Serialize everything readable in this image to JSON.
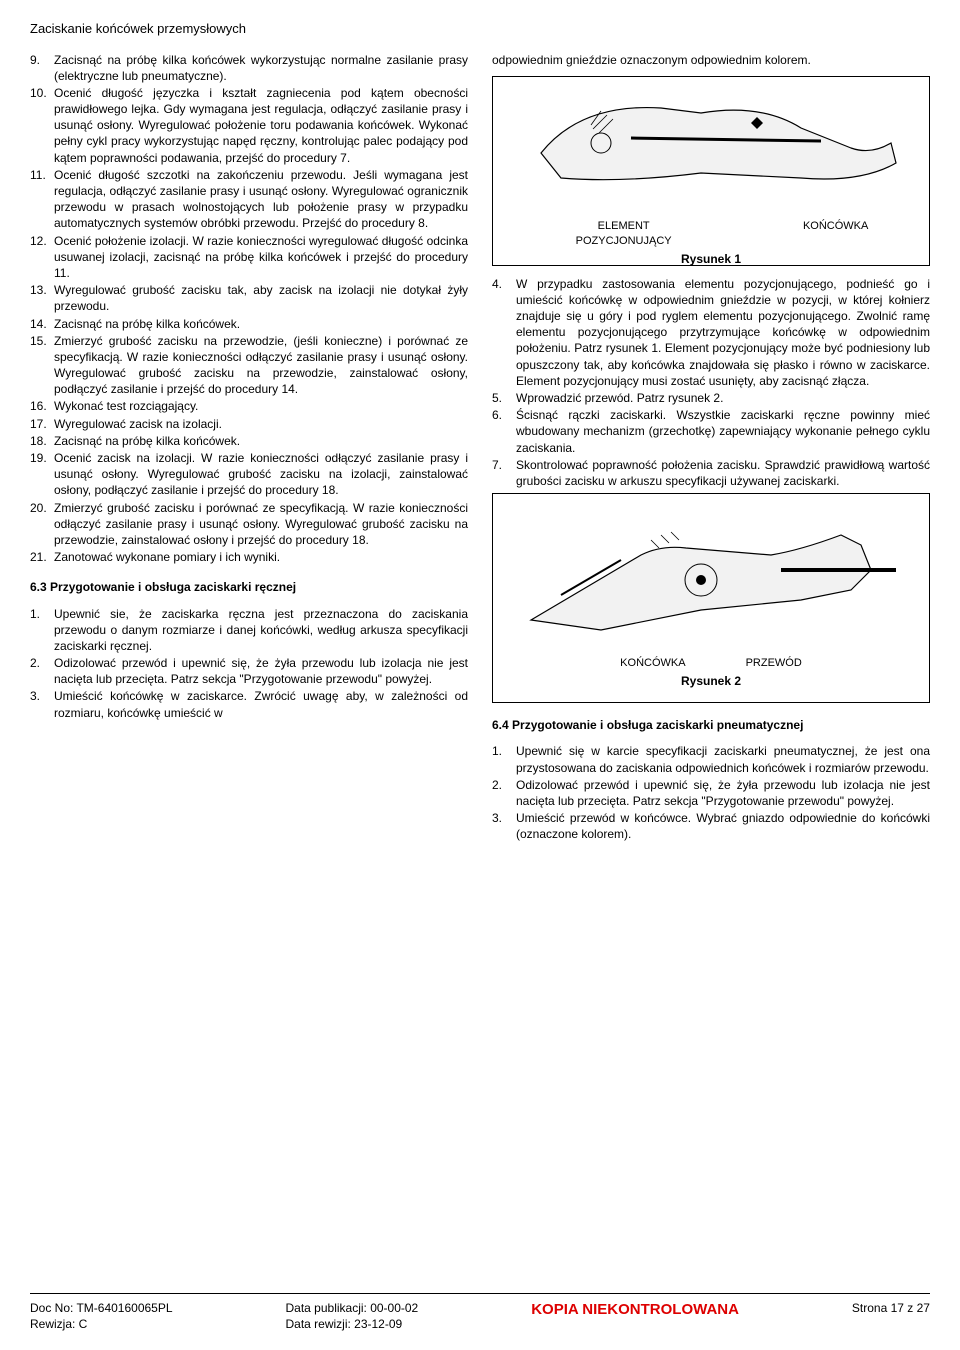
{
  "page_title": "Zaciskanie końcówek przemysłowych",
  "left": {
    "items": [
      {
        "n": "9.",
        "t": "Zacisnąć na próbę kilka końcówek wykorzystując normalne zasilanie prasy (elektryczne lub pneumatyczne)."
      },
      {
        "n": "10.",
        "t": "Ocenić długość języczka i kształt zagniecenia pod kątem obecności prawidłowego lejka.  Gdy wymagana jest regulacja, odłączyć zasilanie prasy i usunąć osłony. Wyregulować położenie toru podawania końcówek. Wykonać pełny cykl pracy wykorzystując napęd ręczny, kontrolując palec podający pod kątem poprawności podawania, przejść do procedury 7."
      },
      {
        "n": "11.",
        "t": "Ocenić długość szczotki na zakończeniu przewodu. Jeśli wymagana jest regulacja, odłączyć zasilanie prasy i usunąć osłony.  Wyregulować ogranicznik przewodu w prasach wolnostojących lub położenie prasy w przypadku automatycznych systemów obróbki przewodu. Przejść do procedury 8."
      },
      {
        "n": "12.",
        "t": "Ocenić położenie izolacji.  W razie konieczności wyregulować długość odcinka usuwanej izolacji, zacisnąć na próbę kilka końcówek i przejść do procedury 11."
      },
      {
        "n": "13.",
        "t": "Wyregulować grubość zacisku tak, aby zacisk na izolacji nie dotykał żyły przewodu."
      },
      {
        "n": "14.",
        "t": "Zacisnąć na próbę kilka końcówek."
      },
      {
        "n": "15.",
        "t": "Zmierzyć grubość zacisku na przewodzie, (jeśli konieczne) i porównać ze specyfikacją.  W razie konieczności odłączyć zasilanie prasy i usunąć osłony. Wyregulować grubość zacisku na przewodzie, zainstalować osłony, podłączyć zasilanie i przejść do procedury 14."
      },
      {
        "n": "16.",
        "t": "Wykonać test rozciągający."
      },
      {
        "n": "17.",
        "t": "Wyregulować zacisk na izolacji."
      },
      {
        "n": "18.",
        "t": "Zacisnąć na próbę kilka końcówek."
      },
      {
        "n": "19.",
        "t": "Ocenić zacisk na izolacji.  W razie konieczności odłączyć zasilanie prasy i usunąć osłony. Wyregulować grubość zacisku na izolacji, zainstalować osłony, podłączyć zasilanie i przejść do procedury 18."
      },
      {
        "n": "20.",
        "t": "Zmierzyć grubość zacisku i porównać ze specyfikacją.  W razie konieczności odłączyć zasilanie prasy i usunąć osłony.  Wyregulować grubość zacisku na przewodzie, zainstalować osłony i przejść do procedury 18."
      },
      {
        "n": "21.",
        "t": "Zanotować wykonane pomiary i ich wyniki."
      }
    ],
    "s63_heading": "6.3  Przygotowanie i obsługa zaciskarki ręcznej",
    "s63_items": [
      {
        "n": "1.",
        "t": "Upewnić sie, że zaciskarka ręczna jest przeznaczona do zaciskania przewodu o danym rozmiarze i danej końcówki, według arkusza specyfikacji zaciskarki ręcznej."
      },
      {
        "n": "2.",
        "t": "Odizolować przewód i upewnić się, że żyła przewodu lub izolacja nie jest nacięta lub przecięta.  Patrz sekcja \"Przygotowanie przewodu\" powyżej."
      },
      {
        "n": "3.",
        "t": "Umieścić końcówkę w zaciskarce.  Zwrócić uwagę  aby, w zależności od rozmiaru, końcówkę umieścić w"
      }
    ]
  },
  "right": {
    "intro": "odpowiednim gnieździe oznaczonym odpowiednim kolorem.",
    "fig1": {
      "label_left": "ELEMENT POZYCJONUJĄCY",
      "label_right": "KOŃCÓWKA",
      "caption": "Rysunek 1"
    },
    "items_a": [
      {
        "n": "4.",
        "t": "W przypadku zastosowania elementu pozycjonującego, podnieść go i umieścić końcówkę w odpowiednim gnieździe w pozycji, w której kołnierz znajduje się u góry i pod ryglem elementu pozycjonującego.  Zwolnić ramę elementu pozycjonującego przytrzymujące końcówkę w odpowiednim położeniu.  Patrz rysunek 1.  Element pozycjonujący może być podniesiony lub opuszczony tak, aby końcówka znajdowała się płasko i równo w zaciskarce.  Element pozycjonujący musi zostać usunięty, aby zacisnąć złącza."
      },
      {
        "n": "5.",
        "t": "Wprowadzić przewód.  Patrz rysunek 2."
      },
      {
        "n": "6.",
        "t": "Ścisnąć rączki zaciskarki.  Wszystkie zaciskarki ręczne powinny mieć wbudowany mechanizm (grzechotkę) zapewniający wykonanie pełnego cyklu zaciskania."
      },
      {
        "n": "7.",
        "t": "Skontrolować poprawność położenia zacisku.  Sprawdzić prawidłową wartość grubości zacisku w arkuszu specyfikacji używanej zaciskarki."
      }
    ],
    "fig2": {
      "label_left": "KOŃCÓWKA",
      "label_right": "PRZEWÓD",
      "caption": "Rysunek 2"
    },
    "s64_heading": "6.4  Przygotowanie i obsługa zaciskarki pneumatycznej",
    "s64_items": [
      {
        "n": "1.",
        "t": "Upewnić się w karcie specyfikacji zaciskarki pneumatycznej, że jest ona przystosowana do zaciskania odpowiednich końcówek i rozmiarów przewodu."
      },
      {
        "n": "2.",
        "t": "Odizolować przewód i upewnić się, że żyła przewodu lub izolacja nie jest nacięta lub przecięta.  Patrz sekcja \"Przygotowanie przewodu\" powyżej."
      },
      {
        "n": "3.",
        "t": "Umieścić przewód w końcówce.  Wybrać gniazdo odpowiednie do końcówki (oznaczone kolorem)."
      }
    ]
  },
  "footer": {
    "doc_no": "Doc No: TM-640160065PL",
    "rev": "Rewizja: C",
    "pub": "Data publikacji: 00-00-02",
    "rev_date": "Data rewizji: 23-12-09",
    "uncontrolled": "KOPIA NIEKONTROLOWANA",
    "page": "Strona 17 z 27"
  }
}
